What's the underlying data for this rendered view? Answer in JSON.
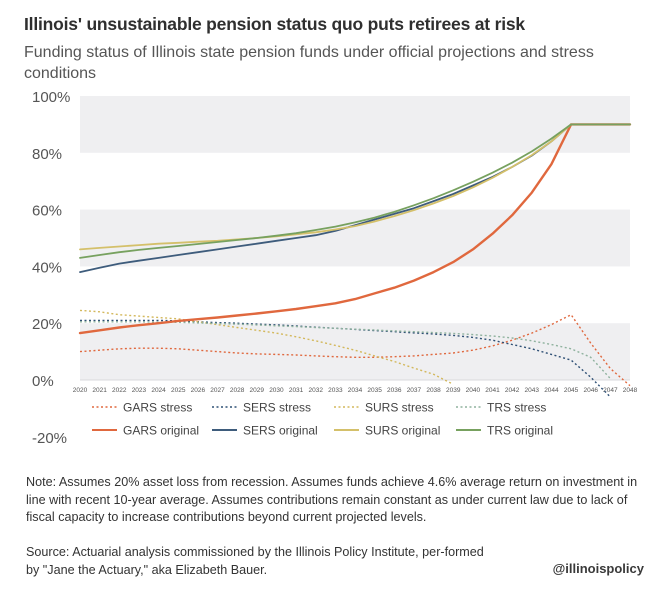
{
  "title": "Illinois' unsustainable pension status quo puts retirees at risk",
  "subtitle": "Funding status of Illinois state pension funds under official projections and stress conditions",
  "note": "Note: Assumes 20% asset loss from recession. Assumes funds achieve 4.6% average return on investment in line with recent 10-year average. Assumes contributions remain constant as under current law due to lack of fiscal capacity to increase contributions beyond current projected levels.",
  "source": "Source:  Actuarial analysis commissioned by the Illinois Policy Institute, per-formed by \"Jane the Actuary,\" aka Elizabeth Bauer.",
  "handle": "@illinoispolicy",
  "chart_data": {
    "type": "line",
    "x": [
      2020,
      2021,
      2022,
      2023,
      2024,
      2025,
      2026,
      2027,
      2028,
      2029,
      2030,
      2031,
      2032,
      2033,
      2034,
      2035,
      2036,
      2037,
      2038,
      2039,
      2040,
      2041,
      2042,
      2043,
      2044,
      2045,
      2046,
      2047,
      2048
    ],
    "ylim": [
      -20,
      100
    ],
    "yticks": [
      100,
      80,
      60,
      40,
      20,
      0,
      -20
    ],
    "ytick_labels": [
      "100%",
      "80%",
      "60%",
      "40%",
      "20%",
      "0%",
      "-20%"
    ],
    "grid_bands": true,
    "legend_position": "bottom",
    "series": [
      {
        "name": "GARS stress",
        "style": "dotted",
        "color": "#e0683e",
        "values": [
          10,
          10.5,
          11,
          11.2,
          11.2,
          11,
          10.5,
          10,
          9.5,
          9.2,
          9,
          8.8,
          8.5,
          8.2,
          8,
          8,
          8.2,
          8.5,
          9,
          9.5,
          10.5,
          12,
          14,
          16.5,
          19.5,
          23,
          13,
          4,
          -2
        ]
      },
      {
        "name": "SERS stress",
        "style": "dotted",
        "color": "#2f5075",
        "values": [
          21,
          21,
          21,
          21,
          21,
          20.8,
          20.5,
          20.2,
          20,
          19.7,
          19.4,
          19,
          18.6,
          18.2,
          17.8,
          17.4,
          17,
          16.6,
          16.2,
          15.7,
          15,
          14,
          12.5,
          11,
          9,
          7,
          1,
          -6,
          null
        ]
      },
      {
        "name": "SURS stress",
        "style": "dotted",
        "color": "#d3b85c",
        "values": [
          24.5,
          24,
          23,
          22.5,
          22,
          21.5,
          20.5,
          19.5,
          18.5,
          17.5,
          16.5,
          15.2,
          13.8,
          12.2,
          10.5,
          8.5,
          6.5,
          4.2,
          2,
          -1.5,
          null,
          null,
          null,
          null,
          null,
          null,
          null,
          null,
          null
        ]
      },
      {
        "name": "TRS stress",
        "style": "dotted",
        "color": "#8fb29e",
        "values": [
          20.5,
          20.5,
          20.5,
          20.5,
          20.4,
          20.3,
          20.1,
          19.9,
          19.7,
          19.4,
          19.1,
          18.8,
          18.5,
          18.2,
          17.9,
          17.6,
          17.3,
          17,
          16.7,
          16.4,
          16,
          15.5,
          14.8,
          13.8,
          12.5,
          11,
          8,
          0.5,
          null
        ]
      },
      {
        "name": "GARS original",
        "style": "solid",
        "color": "#e0683e",
        "values": [
          16.5,
          17.5,
          18.5,
          19.3,
          20,
          20.8,
          21.4,
          22,
          22.7,
          23.4,
          24.2,
          25,
          26,
          27,
          28.5,
          30.5,
          32.5,
          35,
          38,
          41.5,
          46,
          51.5,
          58,
          66,
          76,
          90,
          90,
          90,
          90
        ]
      },
      {
        "name": "SERS original",
        "style": "solid",
        "color": "#3e5c7c",
        "values": [
          38,
          39.5,
          41,
          42,
          43,
          44,
          45,
          46,
          47,
          48,
          49,
          50,
          51,
          52.5,
          54.5,
          56.5,
          58.5,
          60.5,
          63,
          65.5,
          68.5,
          71.5,
          75,
          79,
          84,
          90,
          90,
          90,
          90
        ]
      },
      {
        "name": "SURS original",
        "style": "solid",
        "color": "#d4c06a",
        "values": [
          46,
          46.5,
          47,
          47.5,
          48,
          48.3,
          48.7,
          49,
          49.5,
          50,
          50.6,
          51.3,
          52,
          53,
          54.2,
          55.8,
          57.7,
          59.8,
          62.2,
          64.8,
          67.8,
          71.2,
          75,
          79.2,
          84,
          90,
          90,
          90,
          90
        ]
      },
      {
        "name": "TRS original",
        "style": "solid",
        "color": "#77a15f",
        "values": [
          43,
          44,
          45,
          45.8,
          46.5,
          47.2,
          47.9,
          48.6,
          49.3,
          50,
          50.8,
          51.7,
          52.8,
          54,
          55.5,
          57.2,
          59.2,
          61.5,
          64,
          66.8,
          69.8,
          73,
          76.5,
          80.5,
          85,
          90,
          90,
          90,
          90
        ]
      }
    ]
  }
}
